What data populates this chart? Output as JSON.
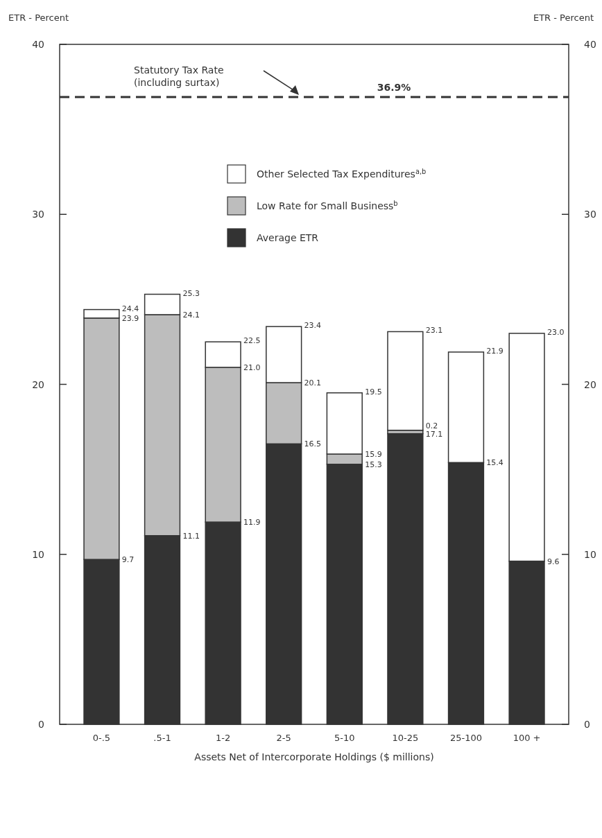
{
  "chart_data": {
    "type": "bar",
    "stacked": true,
    "xlabel": "Assets Net of Intercorporate Holdings ($ millions)",
    "ylabel": "ETR - Percent",
    "y2label": "ETR - Percent",
    "categories": [
      "0-.5",
      ".5-1",
      "1-2",
      "2-5",
      "5-10",
      "10-25",
      "25-100",
      "100 +"
    ],
    "series": [
      {
        "name": "Average ETR",
        "color": "#333333",
        "values": [
          9.7,
          11.1,
          11.9,
          16.5,
          15.3,
          17.1,
          15.4,
          9.6
        ]
      },
      {
        "name": "Low Rate for Small Business$^{b}$",
        "color": "#bdbdbd",
        "values": [
          14.2,
          13.0,
          9.1,
          3.6,
          0.6,
          0.2,
          null,
          null
        ]
      },
      {
        "name": "Other Selected Tax Expenditures$^{a,b}$",
        "color": "#ffffff",
        "values": [
          0.5,
          1.2,
          1.5,
          3.3,
          3.6,
          5.8,
          6.5,
          13.4
        ]
      }
    ],
    "totals": [
      "24.4",
      "25.3",
      "22.5",
      "23.4",
      "19.5",
      "23.1",
      "21.9",
      "23.0"
    ],
    "ylim": [
      0,
      40
    ],
    "yticks": [
      0,
      10,
      20,
      30,
      40
    ],
    "y2lim": [
      0,
      40
    ],
    "y2ticks": [
      0,
      10,
      20,
      30,
      40
    ],
    "ref_lines": [
      {
        "axis": "y",
        "value": 36.9,
        "label": "36.9%",
        "line_style": "dashed",
        "color": "#333333"
      }
    ],
    "annotations": [
      "Statutory Tax Rate (including surtax)",
      {
        "text": "23.9",
        "x": "0-.5",
        "y": 23.9
      },
      {
        "text": "24.1",
        "x": ".5-1",
        "y": 24.1
      },
      {
        "text": "21.0",
        "x": "1-2",
        "y": 21.0
      },
      {
        "text": "20.1",
        "x": "2-5",
        "y": 20.1
      },
      {
        "text": "15.9",
        "x": "5-10",
        "y": 15.9
      },
      {
        "text": "0.2",
        "x": "10-25",
        "y": 17.3
      },
      {
        "text": "9.7",
        "x": "0-.5",
        "y": 9.7
      },
      {
        "text": "11.1",
        "x": ".5-1",
        "y": 11.1
      },
      {
        "text": "11.9",
        "x": "1-2",
        "y": 11.9
      },
      {
        "text": "16.5",
        "x": "2-5",
        "y": 16.5
      },
      {
        "text": "15.3",
        "x": "5-10",
        "y": 15.3
      },
      {
        "text": "17.1",
        "x": "10-25",
        "y": 17.1
      },
      {
        "text": "15.4",
        "x": "25-100",
        "y": 15.4
      },
      {
        "text": "9.6",
        "x": "100 +",
        "y": 9.6
      }
    ],
    "legend": "top"
  }
}
